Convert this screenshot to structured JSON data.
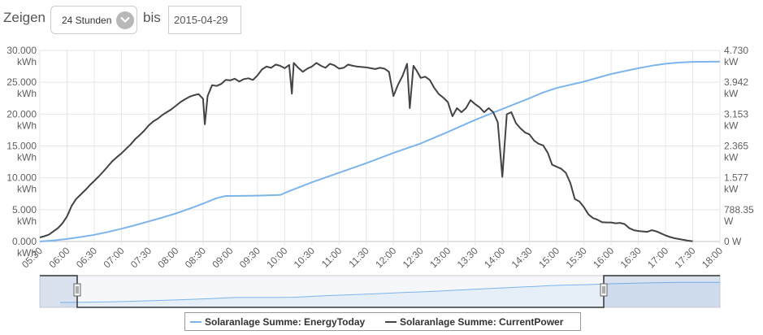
{
  "toolbar": {
    "show_label": "Zeigen",
    "range_value": "24 Stunden",
    "to_label": "bis",
    "date_value": "2015-04-29"
  },
  "colors": {
    "energy_today": "#7cb5ec",
    "current_power": "#434348",
    "grid": "#e6e6e6",
    "navigator_series": "#7cb5ec"
  },
  "legend": {
    "items": [
      {
        "label": "Solaranlage Summe: EnergyToday",
        "color": "#7cb5ec"
      },
      {
        "label": "Solaranlage Summe: CurrentPower",
        "color": "#434348"
      }
    ]
  },
  "chart_data": {
    "type": "line",
    "x_ticks": [
      "05:30",
      "06:00",
      "06:30",
      "07:00",
      "07:30",
      "08:00",
      "08:30",
      "09:00",
      "09:30",
      "10:00",
      "10:30",
      "11:00",
      "11:30",
      "12:00",
      "12:30",
      "13:00",
      "13:30",
      "14:00",
      "14:30",
      "15:00",
      "15:30",
      "16:00",
      "16:30",
      "17:00",
      "17:30",
      "18:00"
    ],
    "xlim": [
      "05:30",
      "18:00"
    ],
    "y_left": {
      "ticks": [
        {
          "value": 0,
          "label": "0.000",
          "unit": "kWh"
        },
        {
          "value": 5000,
          "label": "5.000",
          "unit": "kWh"
        },
        {
          "value": 10000,
          "label": "10.000",
          "unit": "kWh"
        },
        {
          "value": 15000,
          "label": "15.000",
          "unit": "kWh"
        },
        {
          "value": 20000,
          "label": "20.000",
          "unit": "kWh"
        },
        {
          "value": 25000,
          "label": "25.000",
          "unit": "kWh"
        },
        {
          "value": 30000,
          "label": "30.000",
          "unit": "kWh"
        }
      ],
      "ylim": [
        0,
        30000
      ]
    },
    "y_right": {
      "ticks": [
        {
          "value": 0,
          "label": "0 W",
          "unit": ""
        },
        {
          "value": 788.35,
          "label": "788.35",
          "unit": "W"
        },
        {
          "value": 1577,
          "label": "1.577",
          "unit": "kW"
        },
        {
          "value": 2365,
          "label": "2.365",
          "unit": "kW"
        },
        {
          "value": 3153,
          "label": "3.153",
          "unit": "kW"
        },
        {
          "value": 3942,
          "label": "3.942",
          "unit": "kW"
        },
        {
          "value": 4730,
          "label": "4.730",
          "unit": "kW"
        }
      ],
      "ylim": [
        0,
        4730
      ]
    },
    "grid": true,
    "legend_position": "bottom-center",
    "series": [
      {
        "name": "Solaranlage Summe: EnergyToday",
        "axis": "left",
        "color": "#7cb5ec",
        "points": [
          [
            "05:30",
            0
          ],
          [
            "05:45",
            150
          ],
          [
            "06:00",
            400
          ],
          [
            "06:15",
            700
          ],
          [
            "06:30",
            1050
          ],
          [
            "06:45",
            1500
          ],
          [
            "07:00",
            2000
          ],
          [
            "07:15",
            2550
          ],
          [
            "07:30",
            3150
          ],
          [
            "07:45",
            3750
          ],
          [
            "08:00",
            4400
          ],
          [
            "08:15",
            5150
          ],
          [
            "08:30",
            5950
          ],
          [
            "08:45",
            6800
          ],
          [
            "08:55",
            7150
          ],
          [
            "09:00",
            7150
          ],
          [
            "09:30",
            7200
          ],
          [
            "09:55",
            7300
          ],
          [
            "10:05",
            7900
          ],
          [
            "10:30",
            9300
          ],
          [
            "11:00",
            10800
          ],
          [
            "11:30",
            12300
          ],
          [
            "12:00",
            13900
          ],
          [
            "12:30",
            15400
          ],
          [
            "12:45",
            16300
          ],
          [
            "13:00",
            17200
          ],
          [
            "13:30",
            19100
          ],
          [
            "14:00",
            20800
          ],
          [
            "14:30",
            22500
          ],
          [
            "14:45",
            23400
          ],
          [
            "15:00",
            24100
          ],
          [
            "15:30",
            25100
          ],
          [
            "16:00",
            26300
          ],
          [
            "16:30",
            27200
          ],
          [
            "16:45",
            27600
          ],
          [
            "17:00",
            27900
          ],
          [
            "17:15",
            28100
          ],
          [
            "17:30",
            28200
          ],
          [
            "18:00",
            28250
          ]
        ]
      },
      {
        "name": "Solaranlage Summe: CurrentPower",
        "axis": "right",
        "color": "#434348",
        "points": [
          [
            "05:30",
            100
          ],
          [
            "05:35",
            130
          ],
          [
            "05:40",
            170
          ],
          [
            "05:45",
            250
          ],
          [
            "05:50",
            330
          ],
          [
            "05:55",
            450
          ],
          [
            "06:00",
            620
          ],
          [
            "06:05",
            880
          ],
          [
            "06:10",
            1050
          ],
          [
            "06:15",
            1160
          ],
          [
            "06:20",
            1270
          ],
          [
            "06:25",
            1390
          ],
          [
            "06:30",
            1500
          ],
          [
            "06:35",
            1610
          ],
          [
            "06:40",
            1730
          ],
          [
            "06:45",
            1860
          ],
          [
            "06:50",
            1990
          ],
          [
            "06:55",
            2090
          ],
          [
            "07:00",
            2180
          ],
          [
            "07:05",
            2290
          ],
          [
            "07:10",
            2400
          ],
          [
            "07:15",
            2530
          ],
          [
            "07:20",
            2630
          ],
          [
            "07:25",
            2740
          ],
          [
            "07:30",
            2870
          ],
          [
            "07:35",
            2970
          ],
          [
            "07:40",
            3040
          ],
          [
            "07:45",
            3130
          ],
          [
            "07:50",
            3200
          ],
          [
            "07:55",
            3270
          ],
          [
            "08:00",
            3360
          ],
          [
            "08:05",
            3450
          ],
          [
            "08:10",
            3520
          ],
          [
            "08:15",
            3580
          ],
          [
            "08:20",
            3620
          ],
          [
            "08:25",
            3650
          ],
          [
            "08:30",
            3530
          ],
          [
            "08:32",
            2900
          ],
          [
            "08:35",
            3600
          ],
          [
            "08:40",
            3870
          ],
          [
            "08:45",
            3850
          ],
          [
            "08:50",
            3900
          ],
          [
            "08:55",
            4000
          ],
          [
            "09:00",
            3990
          ],
          [
            "09:05",
            4030
          ],
          [
            "09:10",
            3960
          ],
          [
            "09:15",
            4020
          ],
          [
            "09:20",
            4040
          ],
          [
            "09:25",
            4000
          ],
          [
            "09:30",
            4110
          ],
          [
            "09:35",
            4260
          ],
          [
            "09:40",
            4330
          ],
          [
            "09:45",
            4300
          ],
          [
            "09:50",
            4380
          ],
          [
            "09:55",
            4350
          ],
          [
            "10:00",
            4290
          ],
          [
            "10:05",
            4370
          ],
          [
            "10:08",
            3660
          ],
          [
            "10:10",
            4420
          ],
          [
            "10:15",
            4300
          ],
          [
            "10:20",
            4200
          ],
          [
            "10:25",
            4280
          ],
          [
            "10:30",
            4330
          ],
          [
            "10:35",
            4420
          ],
          [
            "10:40",
            4350
          ],
          [
            "10:45",
            4300
          ],
          [
            "10:50",
            4400
          ],
          [
            "10:55",
            4360
          ],
          [
            "11:00",
            4280
          ],
          [
            "11:05",
            4300
          ],
          [
            "11:10",
            4380
          ],
          [
            "11:15",
            4350
          ],
          [
            "11:20",
            4330
          ],
          [
            "11:25",
            4320
          ],
          [
            "11:30",
            4310
          ],
          [
            "11:35",
            4290
          ],
          [
            "11:40",
            4270
          ],
          [
            "11:45",
            4300
          ],
          [
            "11:50",
            4280
          ],
          [
            "11:55",
            4200
          ],
          [
            "12:00",
            3600
          ],
          [
            "12:05",
            3880
          ],
          [
            "12:10",
            4100
          ],
          [
            "12:15",
            4400
          ],
          [
            "12:18",
            3300
          ],
          [
            "12:22",
            4350
          ],
          [
            "12:25",
            4250
          ],
          [
            "12:30",
            4050
          ],
          [
            "12:35",
            4080
          ],
          [
            "12:40",
            4000
          ],
          [
            "12:45",
            3800
          ],
          [
            "12:50",
            3650
          ],
          [
            "12:55",
            3560
          ],
          [
            "13:00",
            3450
          ],
          [
            "13:05",
            3100
          ],
          [
            "13:10",
            3300
          ],
          [
            "13:15",
            3200
          ],
          [
            "13:20",
            3300
          ],
          [
            "13:25",
            3500
          ],
          [
            "13:30",
            3400
          ],
          [
            "13:35",
            3320
          ],
          [
            "13:40",
            3200
          ],
          [
            "13:45",
            3300
          ],
          [
            "13:50",
            3200
          ],
          [
            "13:55",
            2950
          ],
          [
            "14:00",
            1600
          ],
          [
            "14:05",
            3150
          ],
          [
            "14:10",
            3200
          ],
          [
            "14:15",
            2930
          ],
          [
            "14:20",
            2800
          ],
          [
            "14:25",
            2700
          ],
          [
            "14:30",
            2650
          ],
          [
            "14:35",
            2500
          ],
          [
            "14:40",
            2420
          ],
          [
            "14:45",
            2380
          ],
          [
            "14:50",
            2200
          ],
          [
            "14:55",
            1900
          ],
          [
            "15:00",
            1850
          ],
          [
            "15:05",
            1800
          ],
          [
            "15:10",
            1700
          ],
          [
            "15:15",
            1450
          ],
          [
            "15:20",
            1050
          ],
          [
            "15:25",
            990
          ],
          [
            "15:30",
            850
          ],
          [
            "15:35",
            670
          ],
          [
            "15:40",
            580
          ],
          [
            "15:45",
            540
          ],
          [
            "15:50",
            480
          ],
          [
            "15:55",
            470
          ],
          [
            "16:00",
            470
          ],
          [
            "16:05",
            450
          ],
          [
            "16:10",
            460
          ],
          [
            "16:15",
            430
          ],
          [
            "16:20",
            330
          ],
          [
            "16:25",
            280
          ],
          [
            "16:30",
            260
          ],
          [
            "16:35",
            250
          ],
          [
            "16:40",
            240
          ],
          [
            "16:45",
            280
          ],
          [
            "16:50",
            250
          ],
          [
            "16:55",
            200
          ],
          [
            "17:00",
            150
          ],
          [
            "17:05",
            110
          ],
          [
            "17:10",
            80
          ],
          [
            "17:15",
            60
          ],
          [
            "17:20",
            40
          ],
          [
            "17:25",
            20
          ],
          [
            "17:30",
            5
          ]
        ]
      }
    ]
  }
}
